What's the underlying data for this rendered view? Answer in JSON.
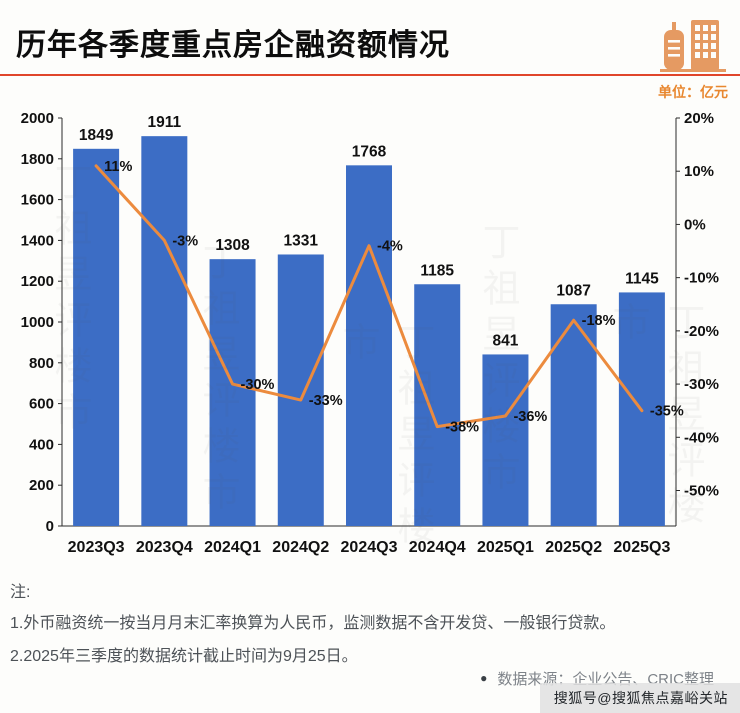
{
  "header": {
    "title": "历年各季度重点房企融资额情况",
    "unit_label": "单位：亿元"
  },
  "colors": {
    "bar": "#3C6DC5",
    "line": "#EC8B3E",
    "accent_red": "#E0452B",
    "unit_orange": "#E8872F",
    "icon_orange": "#E59A62"
  },
  "chart_data": {
    "type": "bar+line",
    "title": "历年各季度重点房企融资额情况",
    "unit": "亿元",
    "categories": [
      "2023Q3",
      "2023Q4",
      "2024Q1",
      "2024Q2",
      "2024Q3",
      "2024Q4",
      "2025Q1",
      "2025Q2",
      "2025Q3"
    ],
    "bar_values": [
      1849,
      1911,
      1308,
      1331,
      1768,
      1185,
      841,
      1087,
      1145
    ],
    "line_values_pct": [
      11,
      -3,
      -30,
      -33,
      -4,
      -38,
      -36,
      -18,
      -35
    ],
    "line_labels": [
      "11%",
      "-3%",
      "-30%",
      "-33%",
      "-4%",
      "-38%",
      "-36%",
      "-18%",
      "-35%"
    ],
    "left_axis": {
      "min": 0,
      "max": 2000,
      "step": 200,
      "ticks": [
        "2000",
        "1800",
        "1600",
        "1400",
        "1200",
        "1000",
        "800",
        "600",
        "400",
        "200",
        "0"
      ]
    },
    "right_axis": {
      "min": -50,
      "max": 20,
      "step": 10,
      "ticks": [
        "20%",
        "10%",
        "0%",
        "-10%",
        "-20%",
        "-30%",
        "-40%",
        "-50%"
      ]
    },
    "grid": false,
    "legend": false
  },
  "notes": {
    "label": "注:",
    "lines": [
      "1.外币融资统一按当月月末汇率换算为人民币，监测数据不含开发贷、一般银行贷款。",
      "2.2025年三季度的数据统计截止时间为9月25日。"
    ]
  },
  "source": {
    "bullet": "●",
    "text": "数据来源：企业公告、CRIC整理"
  },
  "watermark": {
    "faint": "丁祖昱评楼市",
    "sohu": "搜狐号@搜狐焦点嘉峪关站"
  }
}
